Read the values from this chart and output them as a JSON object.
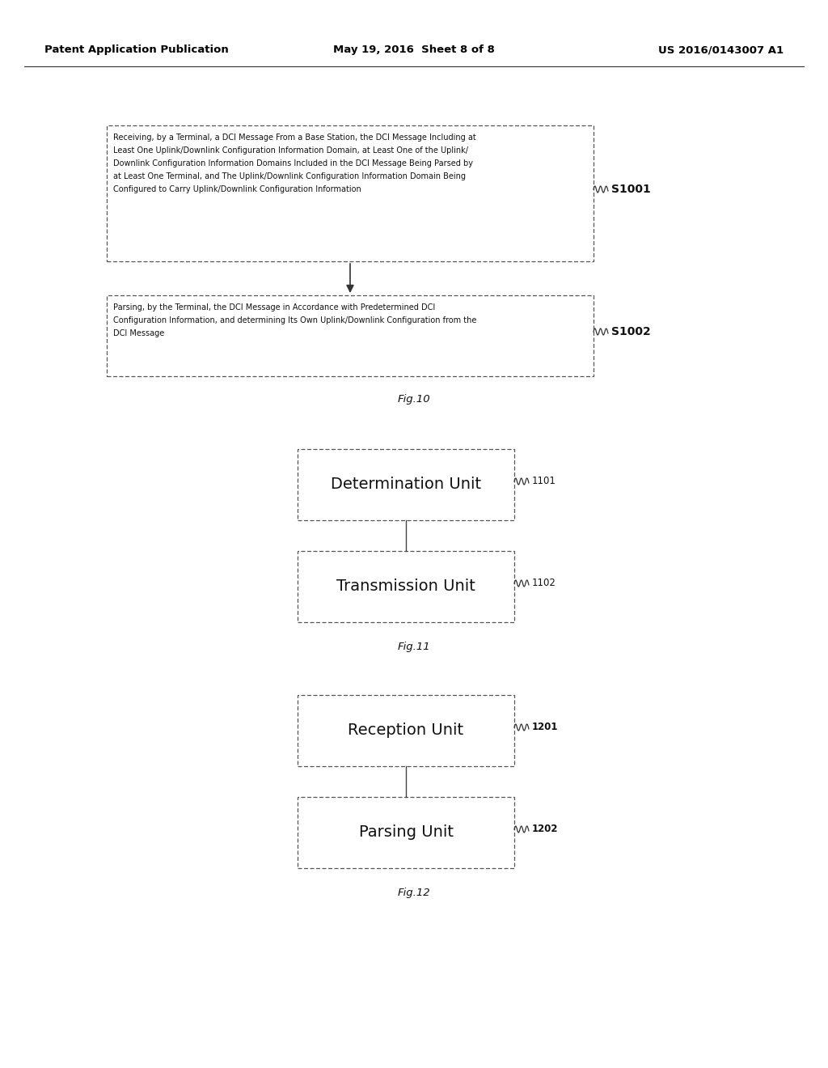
{
  "bg_color": "#ffffff",
  "header_left": "Patent Application Publication",
  "header_mid": "May 19, 2016  Sheet 8 of 8",
  "header_right": "US 2016/0143007 A1",
  "fig10_box1_text": "Receiving, by a Terminal, a DCI Message From a Base Station, the DCI Message Including at\nLeast One Uplink/Downlink Configuration Information Domain, at Least One of the Uplink/\nDownlink Configuration Information Domains Included in the DCI Message Being Parsed by\nat Least One Terminal, and The Uplink/Downlink Configuration Information Domain Being\nConfigured to Carry Uplink/Downlink Configuration Information",
  "fig10_box1_label": "S1001",
  "fig10_box2_text": "Parsing, by the Terminal, the DCI Message in Accordance with Predetermined DCI\nConfiguration Information, and determining Its Own Uplink/Downlink Configuration from the\nDCI Message",
  "fig10_box2_label": "S1002",
  "fig10_caption": "Fig.10",
  "fig11_box1_text": "Determination Unit",
  "fig11_box1_label": "1101",
  "fig11_box2_text": "Transmission Unit",
  "fig11_box2_label": "1102",
  "fig11_caption": "Fig.11",
  "fig12_box1_text": "Reception Unit",
  "fig12_box1_label": "1201",
  "fig12_box2_text": "Parsing Unit",
  "fig12_box2_label": "1202",
  "fig12_caption": "Fig.12"
}
